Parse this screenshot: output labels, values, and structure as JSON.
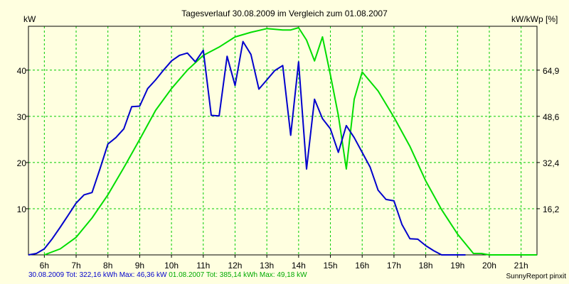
{
  "chart_data": {
    "type": "line",
    "title": "Tagesverlauf 30.08.2009 im Vergleich zum 01.08.2007",
    "ylabel_left": "kW",
    "ylabel_right": "kW/kWp [%]",
    "x_ticks": [
      "6h",
      "7h",
      "8h",
      "9h",
      "10h",
      "11h",
      "12h",
      "13h",
      "14h",
      "15h",
      "16h",
      "17h",
      "18h",
      "19h",
      "20h",
      "21h"
    ],
    "xlim": [
      5.5,
      21.5
    ],
    "ylim": [
      0,
      49.5
    ],
    "y_ticks_left": [
      "10",
      "20",
      "30",
      "40"
    ],
    "y_ticks_left_values": [
      10,
      20,
      30,
      40
    ],
    "y_ticks_right": [
      "16,2",
      "32,4",
      "48,6",
      "64,9"
    ],
    "grid": true,
    "series": [
      {
        "name": "30.08.2009",
        "color": "#0000cc",
        "x": [
          5.5,
          5.75,
          6.0,
          6.25,
          6.5,
          6.75,
          7.0,
          7.25,
          7.5,
          7.75,
          8.0,
          8.25,
          8.5,
          8.75,
          9.0,
          9.25,
          9.5,
          9.75,
          10.0,
          10.25,
          10.5,
          10.75,
          11.0,
          11.25,
          11.5,
          11.75,
          12.0,
          12.25,
          12.5,
          12.75,
          13.0,
          13.25,
          13.5,
          13.75,
          14.0,
          14.25,
          14.5,
          14.75,
          15.0,
          15.25,
          15.5,
          15.75,
          16.0,
          16.25,
          16.5,
          16.75,
          17.0,
          17.25,
          17.5,
          17.75,
          18.0,
          18.25,
          18.5,
          18.75,
          19.0,
          19.25
        ],
        "values": [
          0,
          0.3,
          1.3,
          3.5,
          6,
          8.6,
          11.2,
          13,
          13.5,
          18.6,
          24,
          25.4,
          27.3,
          32.1,
          32.2,
          36,
          37.9,
          40,
          42,
          43.2,
          43.7,
          41.8,
          44.3,
          30.2,
          30.1,
          43,
          36.7,
          46.2,
          43.4,
          35.9,
          37.9,
          39.9,
          41,
          25.9,
          41.8,
          18.6,
          33.7,
          29.5,
          27.3,
          22.2,
          28,
          25.4,
          22.2,
          19,
          14,
          12,
          11.7,
          6.6,
          3.5,
          3.4,
          2,
          0.9,
          0,
          0,
          0,
          0
        ]
      },
      {
        "name": "01.08.2007",
        "color": "#00dd00",
        "x": [
          6.0,
          6.5,
          7.0,
          7.5,
          8.0,
          8.5,
          9.0,
          9.5,
          10.0,
          10.5,
          11.0,
          11.5,
          12.0,
          12.5,
          13.0,
          13.5,
          13.75,
          14.0,
          14.25,
          14.5,
          14.75,
          15.0,
          15.25,
          15.5,
          15.75,
          16.0,
          16.5,
          17.0,
          17.5,
          18.0,
          18.5,
          19.0,
          19.5,
          19.75,
          20.0,
          20.5,
          21.0,
          21.5
        ],
        "values": [
          0,
          1.3,
          3.8,
          8,
          13,
          18.9,
          25,
          31.3,
          36,
          40,
          43.2,
          45,
          47.2,
          48.2,
          49,
          48.7,
          48.7,
          49.2,
          46.5,
          42,
          47.2,
          39,
          30.2,
          18.6,
          33.7,
          39.6,
          35.5,
          29.8,
          23.5,
          16,
          9.8,
          4.5,
          0.3,
          0.3,
          0,
          0,
          0,
          0
        ]
      }
    ]
  },
  "footer": {
    "series1_date": "30.08.2009",
    "series1_stats": "Tot: 322,16 kWh Max: 46,36 kW",
    "series2_date": "01.08.2007",
    "series2_stats": "Tot: 385,14 kWh Max: 49,18 kW",
    "credit": "SunnyReport pinxit"
  },
  "colors": {
    "background": "#ffffe0",
    "grid": "#00cc00",
    "axis": "#000000",
    "series1": "#0000cc",
    "series2": "#00dd00"
  }
}
